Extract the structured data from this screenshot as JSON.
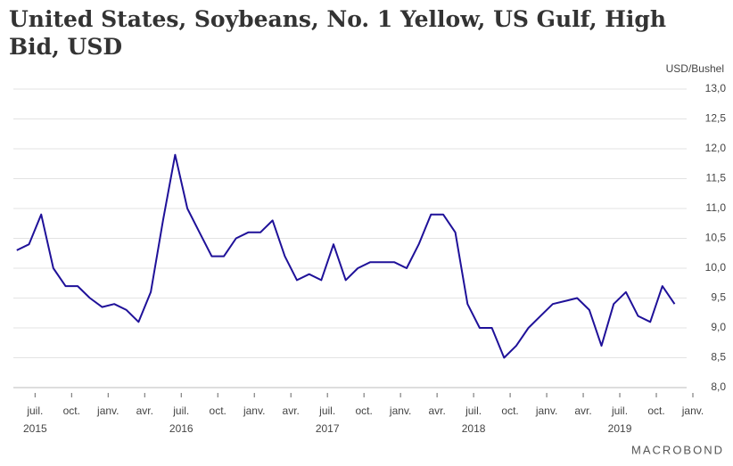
{
  "chart_data": {
    "type": "line",
    "title": "United States, Soybeans, No. 1 Yellow, US Gulf, High Bid, USD",
    "y_unit": "USD/Bushel",
    "source": "MACROBOND",
    "x": [
      "2015-05",
      "2015-06",
      "2015-07",
      "2015-08",
      "2015-09",
      "2015-10",
      "2015-11",
      "2015-12",
      "2016-01",
      "2016-02",
      "2016-03",
      "2016-04",
      "2016-05",
      "2016-06",
      "2016-07",
      "2016-08",
      "2016-09",
      "2016-10",
      "2016-11",
      "2016-12",
      "2017-01",
      "2017-02",
      "2017-03",
      "2017-04",
      "2017-05",
      "2017-06",
      "2017-07",
      "2017-08",
      "2017-09",
      "2017-10",
      "2017-11",
      "2017-12",
      "2018-01",
      "2018-02",
      "2018-03",
      "2018-04",
      "2018-05",
      "2018-06",
      "2018-07",
      "2018-08",
      "2018-09",
      "2018-10",
      "2018-11",
      "2018-12",
      "2019-01",
      "2019-02",
      "2019-03",
      "2019-04",
      "2019-05",
      "2019-06",
      "2019-07",
      "2019-08",
      "2019-09",
      "2019-10",
      "2019-11"
    ],
    "series": [
      {
        "name": "Soybeans",
        "color": "#1f1199",
        "values": [
          10.3,
          10.4,
          10.9,
          10.0,
          9.7,
          9.7,
          9.5,
          9.35,
          9.4,
          9.3,
          9.1,
          9.6,
          10.8,
          11.9,
          11.0,
          10.6,
          10.2,
          10.2,
          10.5,
          10.6,
          10.6,
          10.8,
          10.2,
          9.8,
          9.9,
          9.8,
          10.4,
          9.8,
          10.0,
          10.1,
          10.1,
          10.1,
          10.0,
          10.4,
          10.9,
          10.9,
          10.6,
          9.4,
          9.0,
          9.0,
          8.5,
          8.7,
          9.0,
          9.2,
          9.4,
          9.45,
          9.5,
          9.3,
          8.7,
          9.4,
          9.6,
          9.2,
          9.1,
          9.7,
          9.4
        ]
      }
    ],
    "xlim": [
      "2015-05",
      "2020-01"
    ],
    "xticks": [
      {
        "value": "2015-07",
        "label": "juil."
      },
      {
        "value": "2015-10",
        "label": "oct."
      },
      {
        "value": "2016-01",
        "label": "janv."
      },
      {
        "value": "2016-04",
        "label": "avr."
      },
      {
        "value": "2016-07",
        "label": "juil."
      },
      {
        "value": "2016-10",
        "label": "oct."
      },
      {
        "value": "2017-01",
        "label": "janv."
      },
      {
        "value": "2017-04",
        "label": "avr."
      },
      {
        "value": "2017-07",
        "label": "juil."
      },
      {
        "value": "2017-10",
        "label": "oct."
      },
      {
        "value": "2018-01",
        "label": "janv."
      },
      {
        "value": "2018-04",
        "label": "avr."
      },
      {
        "value": "2018-07",
        "label": "juil."
      },
      {
        "value": "2018-10",
        "label": "oct."
      },
      {
        "value": "2019-01",
        "label": "janv."
      },
      {
        "value": "2019-04",
        "label": "avr."
      },
      {
        "value": "2019-07",
        "label": "juil."
      },
      {
        "value": "2019-10",
        "label": "oct."
      },
      {
        "value": "2020-01",
        "label": "janv."
      }
    ],
    "year_labels": [
      {
        "value": "2015-07",
        "label": "2015"
      },
      {
        "value": "2016-07",
        "label": "2016"
      },
      {
        "value": "2017-07",
        "label": "2017"
      },
      {
        "value": "2018-07",
        "label": "2018"
      },
      {
        "value": "2019-07",
        "label": "2019"
      }
    ],
    "ylim": [
      8.0,
      13.0
    ],
    "yticks": [
      {
        "value": 8.0,
        "label": "8,0"
      },
      {
        "value": 8.5,
        "label": "8,5"
      },
      {
        "value": 9.0,
        "label": "9,0"
      },
      {
        "value": 9.5,
        "label": "9,5"
      },
      {
        "value": 10.0,
        "label": "10,0"
      },
      {
        "value": 10.5,
        "label": "10,5"
      },
      {
        "value": 11.0,
        "label": "11,0"
      },
      {
        "value": 11.5,
        "label": "11,5"
      },
      {
        "value": 12.0,
        "label": "12,0"
      },
      {
        "value": 12.5,
        "label": "12,5"
      },
      {
        "value": 13.0,
        "label": "13,0"
      }
    ],
    "grid": true
  }
}
